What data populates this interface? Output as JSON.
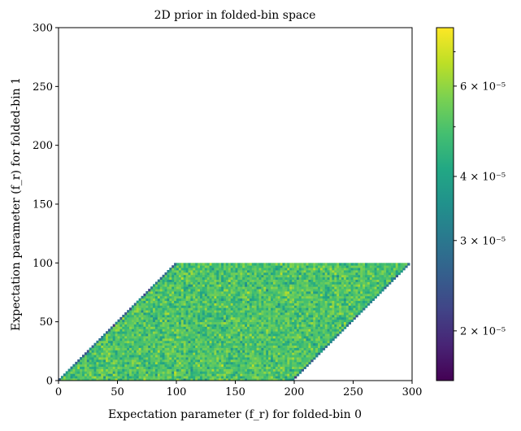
{
  "chart_data": {
    "type": "heatmap",
    "title": "2D prior in folded-bin space",
    "xlabel": "Expectation parameter (f_r) for folded-bin 0",
    "ylabel": "Expectation parameter (f_r) for folded-bin 1",
    "xlim": [
      0,
      300
    ],
    "ylim": [
      0,
      300
    ],
    "xticks": [
      "0",
      "50",
      "100",
      "150",
      "200",
      "250",
      "300"
    ],
    "yticks": [
      "0",
      "50",
      "100",
      "150",
      "200",
      "250",
      "300"
    ],
    "support_region": {
      "description": "parallelogram: 0 <= y <= 100, y <= x <= y + 200",
      "vertices": [
        [
          0,
          0
        ],
        [
          200,
          0
        ],
        [
          300,
          100
        ],
        [
          100,
          100
        ]
      ]
    },
    "value_range": [
      1.6e-05,
      7.8e-05
    ],
    "typical_value": 5e-05,
    "edge_values": 3e-05,
    "colorbar": {
      "scale": "log",
      "colormap": "viridis",
      "range": [
        1.6e-05,
        7.8e-05
      ],
      "major_ticks": [
        {
          "value": 2e-05,
          "label": "2 × 10⁻⁵"
        },
        {
          "value": 3e-05,
          "label": "3 × 10⁻⁵"
        },
        {
          "value": 4e-05,
          "label": "4 × 10⁻⁵"
        },
        {
          "value": 6e-05,
          "label": "6 × 10⁻⁵"
        }
      ],
      "minor_ticks": [
        5e-05,
        7e-05
      ]
    },
    "grid": false
  }
}
